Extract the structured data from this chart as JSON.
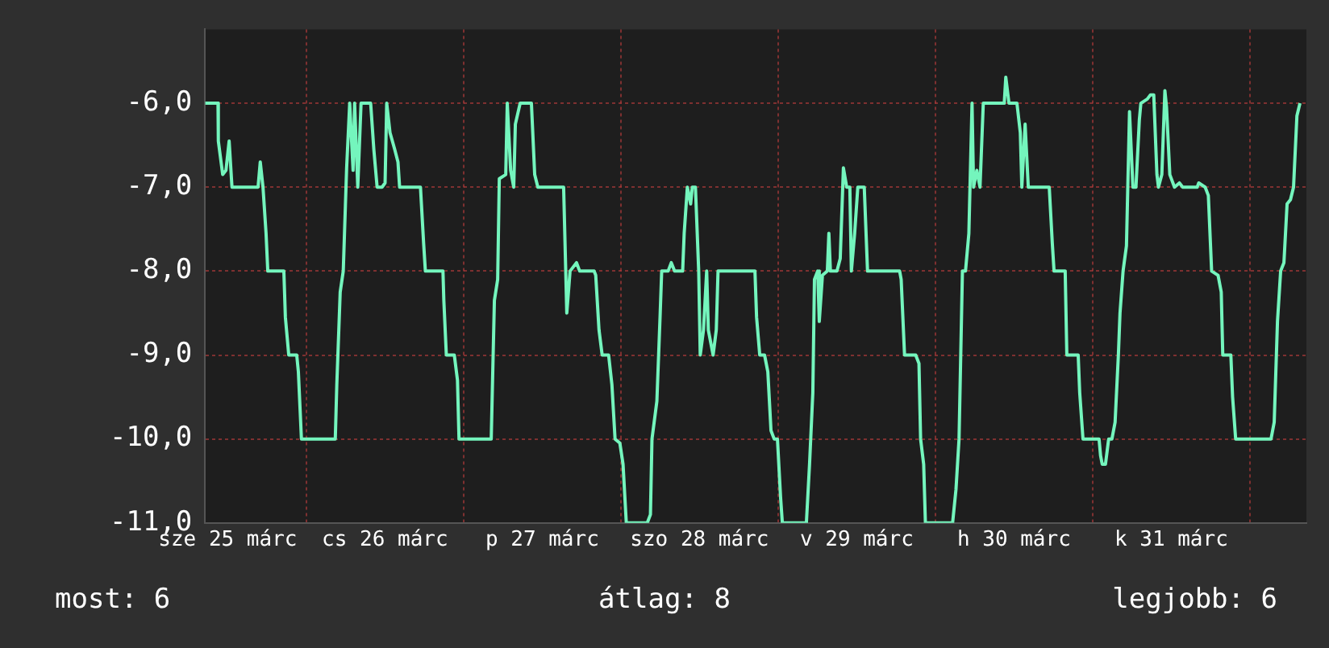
{
  "chart_data": {
    "type": "line",
    "color": "#74f5bd",
    "grid": true,
    "legend": false,
    "marker": "none",
    "line_style": "solid",
    "xlim": [
      "--03-25T08:33",
      "--04-01T08:38"
    ],
    "ylim": [
      -11,
      -5.12
    ],
    "xticks": [
      {
        "value": "--03-25T12:00",
        "label": "sze 25 márc"
      },
      {
        "value": "--03-26",
        "label": null
      },
      {
        "value": "--03-26T12:00",
        "label": "cs 26 márc"
      },
      {
        "value": "--03-27",
        "label": null
      },
      {
        "value": "--03-27T12:00",
        "label": "p 27 márc"
      },
      {
        "value": "--03-28",
        "label": null
      },
      {
        "value": "--03-28T12:00",
        "label": "szo 28 márc"
      },
      {
        "value": "--03-29",
        "label": null
      },
      {
        "value": "--03-29T12:00",
        "label": "v 29 márc"
      },
      {
        "value": "--03-30",
        "label": null
      },
      {
        "value": "--03-30T12:00",
        "label": "h 30 márc"
      },
      {
        "value": "--03-31",
        "label": null
      },
      {
        "value": "--03-31T12:00",
        "label": "k 31 márc"
      },
      {
        "value": "--04-01",
        "label": null
      }
    ],
    "yticks": [
      {
        "value": -11,
        "label": "-11,0"
      },
      {
        "value": -10,
        "label": "-10,0"
      },
      {
        "value": -9,
        "label": "-9,0"
      },
      {
        "value": -8,
        "label": "-8,0"
      },
      {
        "value": -7,
        "label": "-7,0"
      },
      {
        "value": -6,
        "label": "-6,0"
      }
    ],
    "annotations": [
      "most: 6",
      "átlag: 8",
      "legjobb: 6"
    ],
    "x": [
      "--03-25T08:33",
      "--03-25T10:31",
      "--03-25T10:34",
      "--03-25T11:14",
      "--03-25T11:44",
      "--03-25T12:13",
      "--03-25T12:39",
      "--03-25T16:38",
      "--03-25T16:58",
      "--03-25T17:23",
      "--03-25T17:51",
      "--03-25T18:07",
      "--03-25T20:34",
      "--03-25T20:48",
      "--03-25T21:19",
      "--03-25T22:32",
      "--03-25T22:47",
      "--03-25T23:15",
      "--03-26T04:25",
      "--03-26T04:39",
      "--03-26T05:10",
      "--03-26T05:38",
      "--03-26T06:09",
      "--03-26T06:37",
      "--03-26T07:08",
      "--03-26T07:22",
      "--03-26T07:51",
      "--03-26T08:21",
      "--03-26T09:49",
      "--03-26T10:18",
      "--03-26T10:48",
      "--03-26T11:33",
      "--03-26T12:01",
      "--03-26T12:16",
      "--03-26T12:46",
      "--03-26T13:29",
      "--03-26T13:59",
      "--03-26T14:14",
      "--03-26T17:25",
      "--03-26T17:54",
      "--03-26T18:10",
      "--03-26T20:51",
      "--03-26T20:59",
      "--03-26T21:22",
      "--03-26T22:35",
      "--03-26T23:04",
      "--03-26T23:18",
      "--03-27T04:13",
      "--03-27T04:42",
      "--03-27T05:12",
      "--03-27T05:27",
      "--03-27T06:26",
      "--03-27T06:40",
      "--03-27T07:11",
      "--03-27T07:39",
      "--03-27T07:54",
      "--03-27T08:38",
      "--03-27T10:21",
      "--03-27T10:51",
      "--03-27T11:20",
      "--03-27T15:16",
      "--03-27T15:45",
      "--03-27T16:15",
      "--03-27T17:14",
      "--03-27T17:43",
      "--03-27T19:55",
      "--03-27T20:10",
      "--03-27T20:40",
      "--03-27T21:09",
      "--03-27T22:08",
      "--03-27T22:38",
      "--03-27T23:07",
      "--03-27T23:51",
      "--03-28T00:20",
      "--03-28T00:50",
      "--03-28T04:02",
      "--03-28T04:31",
      "--03-28T04:45",
      "--03-28T05:30",
      "--03-28T05:59",
      "--03-28T06:14",
      "--03-28T07:13",
      "--03-28T07:42",
      "--03-28T08:12",
      "--03-28T09:26",
      "--03-28T09:40",
      "--03-28T10:09",
      "--03-28T10:39",
      "--03-28T10:54",
      "--03-28T11:23",
      "--03-28T11:53",
      "--03-28T12:07",
      "--03-28T12:37",
      "--03-28T13:06",
      "--03-28T13:21",
      "--03-28T14:05",
      "--03-28T14:34",
      "--03-28T14:50",
      "--03-28T20:28",
      "--03-28T20:43",
      "--03-28T21:12",
      "--03-28T21:56",
      "--03-28T22:26",
      "--03-28T22:55",
      "--03-28T23:24",
      "--03-28T23:54",
      "--03-29T00:23",
      "--03-29T00:39",
      "--03-29T04:19",
      "--03-29T04:48",
      "--03-29T05:18",
      "--03-29T05:33",
      "--03-29T06:03",
      "--03-29T06:17",
      "--03-29T06:46",
      "--03-29T07:31",
      "--03-29T07:45",
      "--03-29T07:59",
      "--03-29T08:59",
      "--03-29T09:29",
      "--03-29T09:58",
      "--03-29T10:28",
      "--03-29T10:57",
      "--03-29T11:11",
      "--03-29T11:41",
      "--03-29T12:10",
      "--03-29T13:09",
      "--03-29T13:39",
      "--03-29T18:33",
      "--03-29T18:47",
      "--03-29T19:18",
      "--03-29T21:00",
      "--03-29T21:30",
      "--03-29T21:45",
      "--03-29T22:13",
      "--03-29T22:29",
      "--03-30T02:38",
      "--03-30T03:09",
      "--03-30T03:37",
      "--03-30T04:08",
      "--03-30T04:36",
      "--03-30T05:07",
      "--03-30T05:36",
      "--03-30T05:50",
      "--03-30T06:20",
      "--03-30T06:49",
      "--03-30T07:19",
      "--03-30T10:31",
      "--03-30T10:45",
      "--03-30T11:14",
      "--03-30T12:27",
      "--03-30T12:58",
      "--03-30T13:12",
      "--03-30T13:42",
      "--03-30T14:11",
      "--03-30T17:23",
      "--03-30T17:51",
      "--03-30T18:07",
      "--03-30T19:49",
      "--03-30T20:04",
      "--03-30T21:48",
      "--03-30T22:02",
      "--03-30T22:32",
      "--03-31T00:59",
      "--03-31T01:13",
      "--03-31T01:28",
      "--03-31T01:58",
      "--03-31T02:27",
      "--03-31T02:57",
      "--03-31T03:26",
      "--03-31T03:56",
      "--03-31T04:11",
      "--03-31T04:39",
      "--03-31T05:10",
      "--03-31T05:38",
      "--03-31T06:09",
      "--03-31T06:37",
      "--03-31T07:08",
      "--03-31T07:22",
      "--03-31T08:21",
      "--03-31T08:50",
      "--03-31T09:20",
      "--03-31T09:49",
      "--03-31T10:03",
      "--03-31T10:34",
      "--03-31T11:02",
      "--03-31T11:17",
      "--03-31T11:47",
      "--03-31T12:30",
      "--03-31T13:15",
      "--03-31T13:45",
      "--03-31T15:58",
      "--03-31T16:12",
      "--03-31T17:11",
      "--03-31T17:40",
      "--03-31T18:10",
      "--03-31T19:09",
      "--03-31T19:38",
      "--03-31T19:52",
      "--03-31T21:06",
      "--03-31T21:22",
      "--03-31T21:50",
      "--04-01T03:14",
      "--04-01T03:43",
      "--04-01T04:13",
      "--04-01T04:42",
      "--04-01T05:12",
      "--04-01T05:41",
      "--04-01T06:12",
      "--04-01T06:40",
      "--04-01T07:11",
      "--04-01T07:39"
    ],
    "values": [
      -6,
      -6,
      -6.45,
      -6.85,
      -6.8,
      -6.45,
      -7,
      -7,
      -6.7,
      -7,
      -7.55,
      -8,
      -8,
      -8.55,
      -9,
      -9,
      -9.2,
      -10,
      -10,
      -9.35,
      -8.25,
      -8,
      -6.77,
      -6,
      -6.8,
      -6,
      -7,
      -6,
      -6,
      -6.55,
      -7,
      -7,
      -6.95,
      -6,
      -6.35,
      -6.55,
      -6.7,
      -7,
      -7,
      -7.67,
      -8,
      -8,
      -8.35,
      -9,
      -9,
      -9.3,
      -10,
      -10,
      -8.35,
      -8.1,
      -6.9,
      -6.85,
      -6,
      -6.8,
      -7,
      -6.25,
      -6,
      -6,
      -6.85,
      -7,
      -7,
      -8.5,
      -8,
      -7.9,
      -8,
      -8,
      -8.05,
      -8.7,
      -9,
      -9,
      -9.35,
      -10,
      -10.05,
      -10.3,
      -11,
      -11,
      -10.9,
      -10,
      -9.55,
      -8.55,
      -8,
      -8,
      -7.9,
      -8,
      -8,
      -7.55,
      -7,
      -7.2,
      -7,
      -7,
      -8,
      -9,
      -8.7,
      -8,
      -8.7,
      -9,
      -8.7,
      -8,
      -8,
      -8.55,
      -9,
      -9,
      -9.2,
      -9.9,
      -10,
      -10,
      -10.7,
      -11,
      -11,
      -10.3,
      -9.45,
      -8.1,
      -8,
      -8.6,
      -8.05,
      -8,
      -7.55,
      -8,
      -8,
      -7.85,
      -6.77,
      -7,
      -7,
      -8,
      -7.55,
      -7,
      -7,
      -8,
      -8,
      -8.1,
      -9,
      -9,
      -9.1,
      -10,
      -10.3,
      -11,
      -11,
      -10.6,
      -10,
      -8,
      -8,
      -7.55,
      -6,
      -7,
      -6.8,
      -7,
      -6,
      -6,
      -5.69,
      -6,
      -6,
      -6.35,
      -7,
      -6.25,
      -7,
      -7,
      -7.67,
      -8,
      -8,
      -9,
      -9,
      -9.45,
      -10,
      -10,
      -10.2,
      -10.3,
      -10.3,
      -10,
      -10,
      -9.8,
      -9,
      -8.5,
      -8,
      -7.7,
      -6.1,
      -7,
      -7,
      -6.2,
      -6,
      -5.95,
      -5.9,
      -5.9,
      -6.85,
      -7,
      -6.85,
      -5.85,
      -6.05,
      -6.85,
      -7,
      -6.95,
      -7,
      -7,
      -6.95,
      -7,
      -7.1,
      -8,
      -8.05,
      -8.25,
      -9,
      -9,
      -9.5,
      -10,
      -10,
      -9.8,
      -8.6,
      -8,
      -7.9,
      -7.2,
      -7.15,
      -7,
      -6.15,
      -6
    ]
  }
}
